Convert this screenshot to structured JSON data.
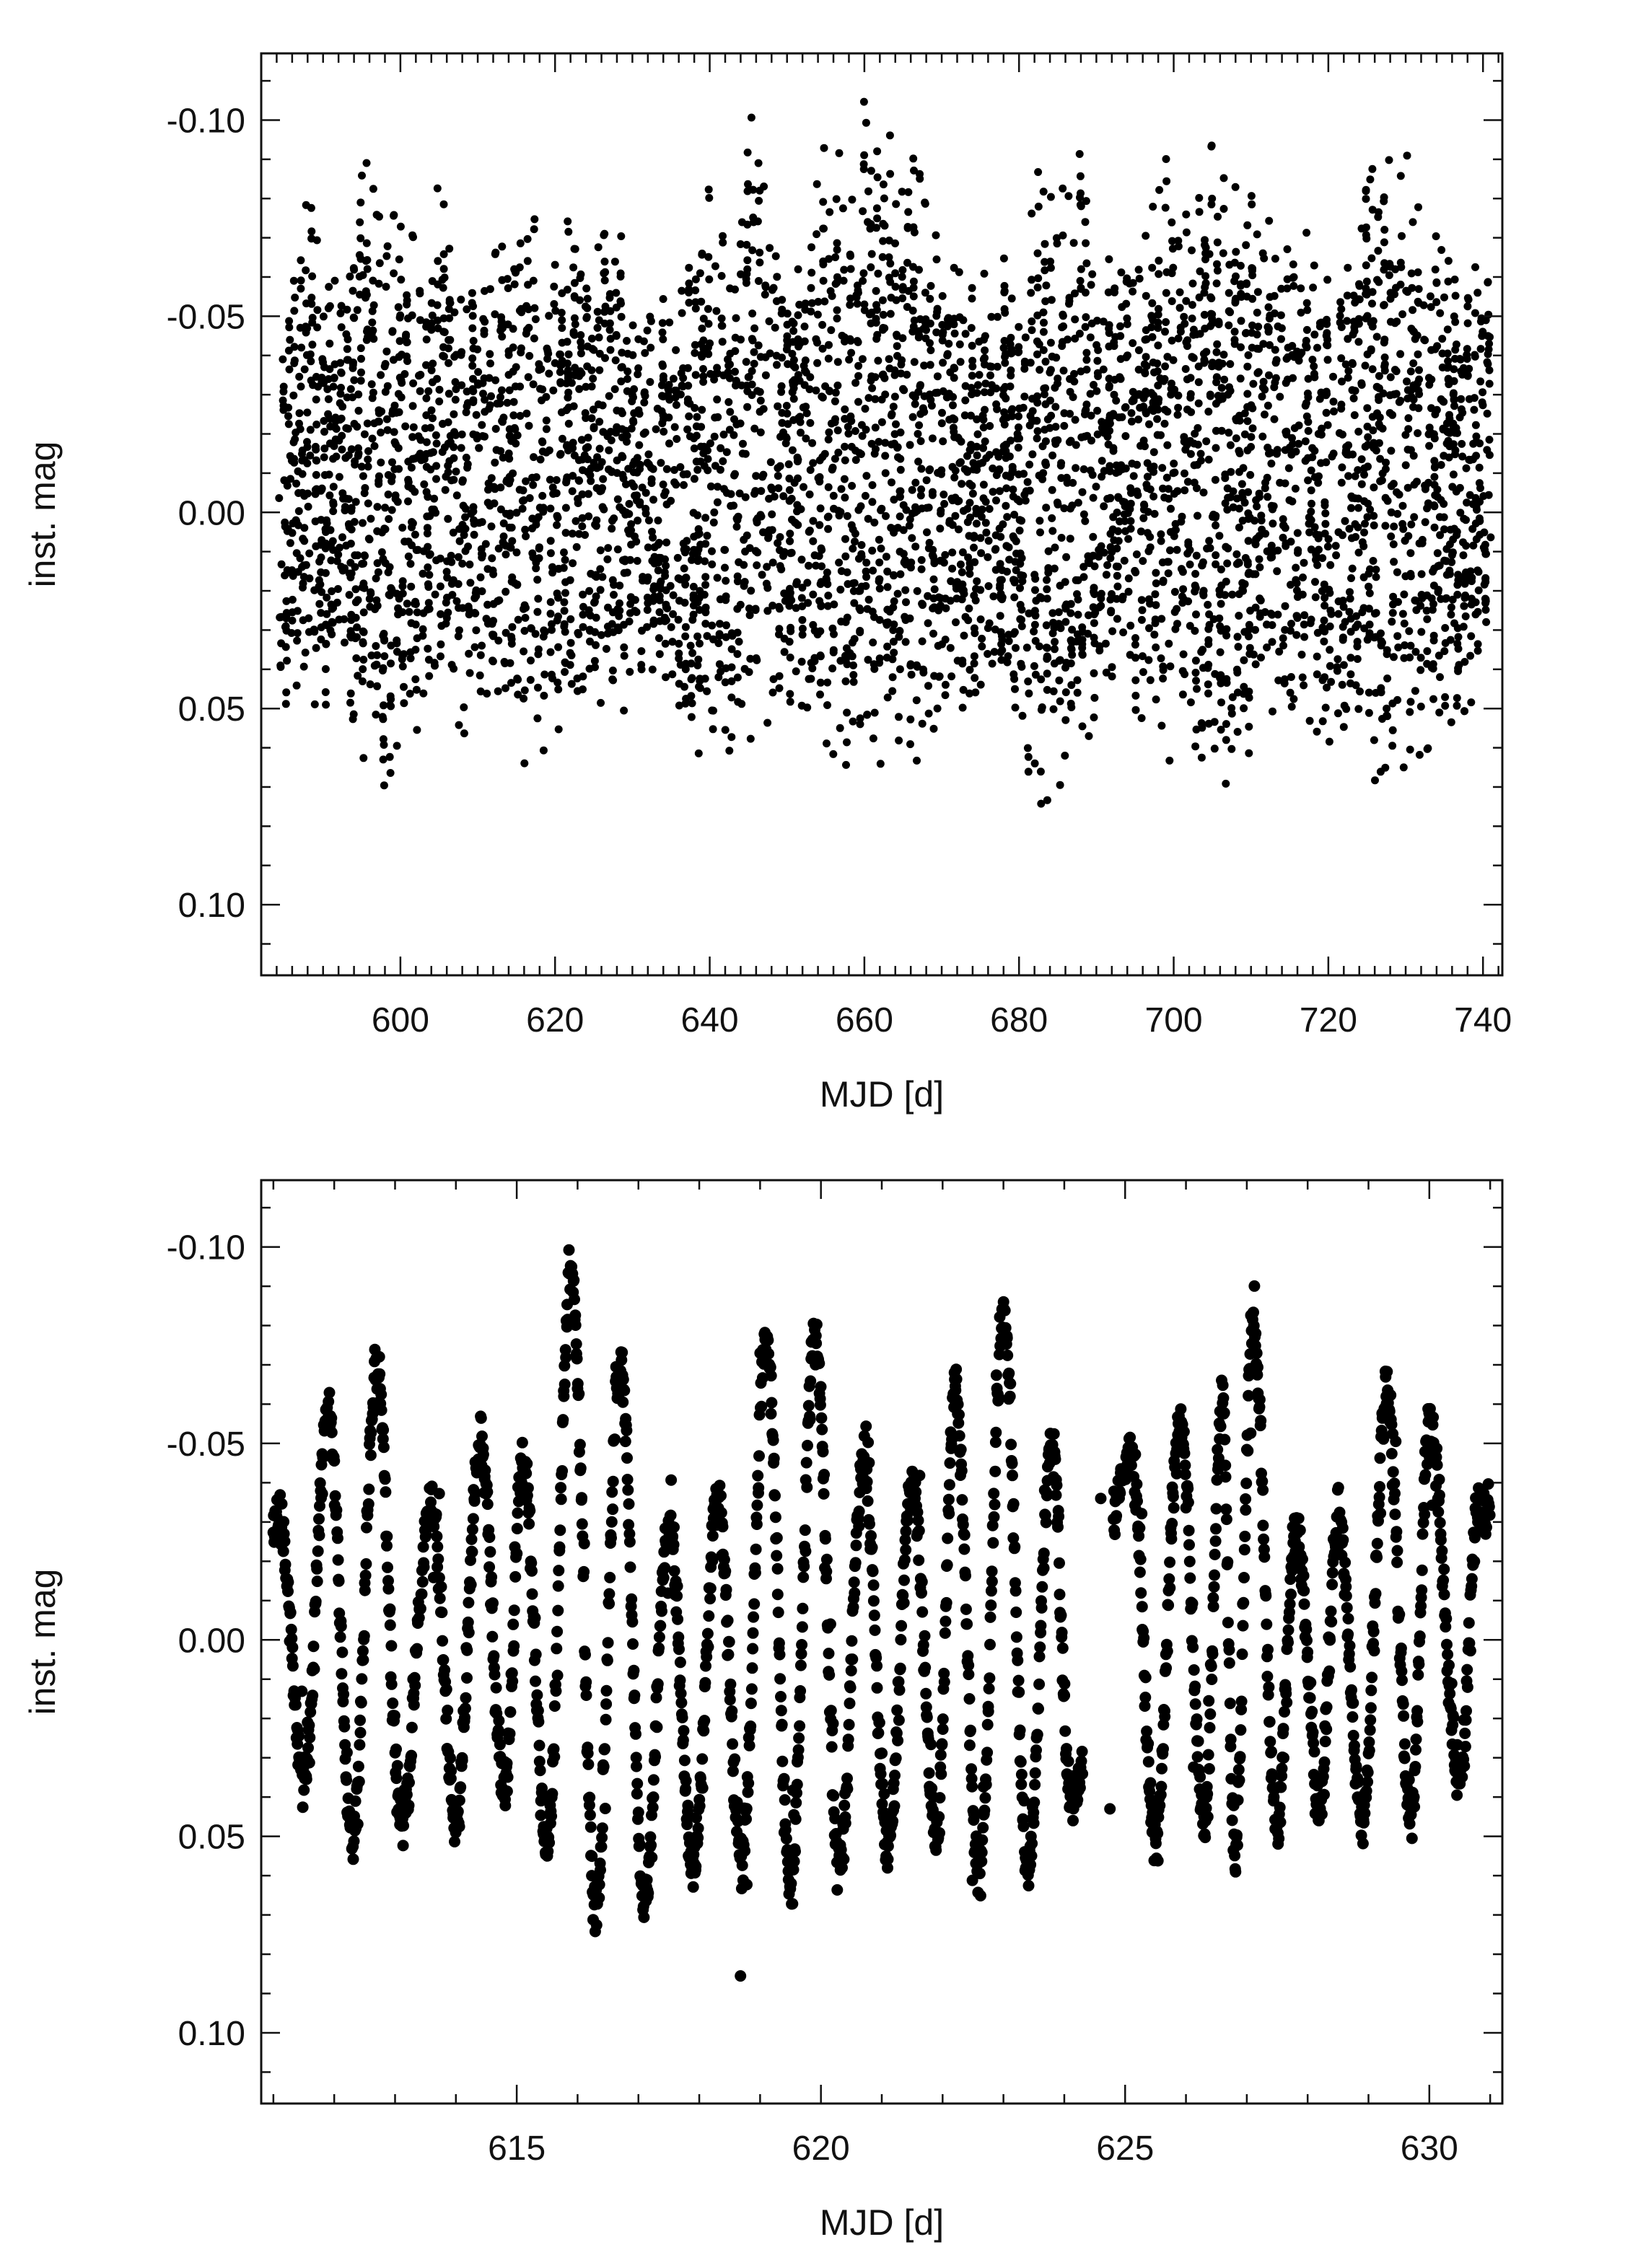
{
  "chart_data": [
    {
      "type": "scatter",
      "panel": "top",
      "xlabel": "MJD [d]",
      "ylabel": "inst. mag",
      "xlim": [
        582,
        742.5
      ],
      "ylim": [
        0.118,
        -0.117
      ],
      "y_inverted": true,
      "x_ticks": [
        600,
        620,
        640,
        660,
        680,
        700,
        720,
        740
      ],
      "x_tick_labels": [
        "600",
        "620",
        "640",
        "660",
        "680",
        "700",
        "720",
        "740"
      ],
      "y_ticks": [
        -0.1,
        -0.05,
        0.0,
        0.05,
        0.1
      ],
      "y_tick_labels": [
        "-0.10",
        "-0.05",
        "0.00",
        "0.05",
        "0.10"
      ],
      "grid": false,
      "marker_color": "#000000",
      "data_range_x": [
        584.3,
        741.0
      ],
      "series": [
        {
          "envelope_min": {
            "x": [
              585,
              588,
              590,
              593,
              595,
              598,
              600,
              603,
              605,
              608,
              610,
              613,
              615,
              618,
              620,
              623,
              625,
              628,
              630,
              633,
              635,
              638,
              640,
              643,
              645,
              648,
              650,
              653,
              655,
              658,
              660,
              663,
              665,
              668,
              670,
              673,
              675,
              678,
              680,
              683,
              685,
              688,
              690,
              693,
              695,
              698,
              700,
              703,
              705,
              708,
              710,
              713,
              715,
              718,
              720,
              723,
              725,
              728,
              730,
              733,
              735,
              738,
              740
            ],
            "y": [
              -0.055,
              -0.08,
              -0.07,
              -0.065,
              -0.095,
              -0.07,
              -0.08,
              -0.062,
              -0.085,
              -0.06,
              -0.058,
              -0.07,
              -0.092,
              -0.078,
              -0.075,
              -0.08,
              -0.065,
              -0.078,
              -0.05,
              -0.065,
              -0.06,
              -0.07,
              -0.088,
              -0.07,
              -0.105,
              -0.085,
              -0.06,
              -0.075,
              -0.095,
              -0.09,
              -0.105,
              -0.095,
              -0.102,
              -0.08,
              -0.065,
              -0.06,
              -0.06,
              -0.065,
              -0.055,
              -0.094,
              -0.08,
              -0.092,
              -0.058,
              -0.07,
              -0.065,
              -0.085,
              -0.095,
              -0.082,
              -0.094,
              -0.088,
              -0.09,
              -0.07,
              -0.08,
              -0.068,
              -0.06,
              -0.08,
              -0.095,
              -0.09,
              -0.092,
              -0.075,
              -0.065,
              -0.06,
              -0.068
            ]
          },
          "envelope_max": {
            "x": [
              585,
              588,
              590,
              593,
              595,
              598,
              600,
              603,
              605,
              608,
              610,
              613,
              615,
              618,
              620,
              623,
              625,
              628,
              630,
              633,
              635,
              638,
              640,
              643,
              645,
              648,
              650,
              653,
              655,
              658,
              660,
              663,
              665,
              668,
              670,
              673,
              675,
              678,
              680,
              683,
              685,
              688,
              690,
              693,
              695,
              698,
              700,
              703,
              705,
              708,
              710,
              713,
              715,
              718,
              720,
              723,
              725,
              728,
              730,
              733,
              735,
              738,
              740
            ],
            "y": [
              0.058,
              0.048,
              0.05,
              0.055,
              0.062,
              0.07,
              0.06,
              0.058,
              0.05,
              0.058,
              0.045,
              0.05,
              0.065,
              0.062,
              0.06,
              0.055,
              0.05,
              0.055,
              0.045,
              0.05,
              0.055,
              0.06,
              0.065,
              0.062,
              0.058,
              0.055,
              0.048,
              0.05,
              0.06,
              0.065,
              0.062,
              0.065,
              0.068,
              0.06,
              0.05,
              0.05,
              0.048,
              0.052,
              0.06,
              0.075,
              0.07,
              0.065,
              0.055,
              0.05,
              0.055,
              0.06,
              0.065,
              0.06,
              0.068,
              0.07,
              0.06,
              0.05,
              0.05,
              0.055,
              0.065,
              0.065,
              0.07,
              0.065,
              0.065,
              0.06,
              0.055,
              0.05,
              0.05
            ]
          }
        }
      ]
    },
    {
      "type": "scatter",
      "panel": "bottom",
      "xlabel": "MJD [d]",
      "ylabel": "inst. mag",
      "xlim": [
        610.8,
        631.2
      ],
      "ylim": [
        0.118,
        -0.117
      ],
      "y_inverted": true,
      "x_ticks": [
        615,
        620,
        625,
        630
      ],
      "x_tick_labels": [
        "615",
        "620",
        "625",
        "630"
      ],
      "y_ticks": [
        -0.1,
        -0.05,
        0.0,
        0.05,
        0.1
      ],
      "y_tick_labels": [
        "-0.10",
        "-0.05",
        "0.00",
        "0.05",
        "0.10"
      ],
      "grid": false,
      "marker_color": "#000000",
      "series": [
        {
          "oscillation_period_d": 0.8,
          "gap_x": [
            624.3,
            624.8
          ],
          "peaks": {
            "x": [
              611.1,
              611.9,
              612.7,
              613.6,
              614.4,
              615.1,
              615.9,
              616.7,
              617.5,
              618.3,
              619.1,
              619.9,
              620.7,
              621.5,
              622.2,
              623.0,
              623.8,
              625.1,
              625.9,
              626.6,
              627.1,
              627.8,
              628.5,
              629.3,
              630.0,
              630.8
            ],
            "y": [
              -0.03,
              -0.058,
              -0.07,
              -0.035,
              -0.05,
              -0.045,
              -0.094,
              -0.07,
              -0.03,
              -0.034,
              -0.076,
              -0.078,
              -0.045,
              -0.04,
              -0.065,
              -0.082,
              -0.05,
              -0.047,
              -0.055,
              -0.06,
              -0.081,
              -0.028,
              -0.03,
              -0.061,
              -0.055,
              -0.033
            ]
          },
          "troughs": {
            "x": [
              611.5,
              612.3,
              613.1,
              614.0,
              614.8,
              615.5,
              616.3,
              617.1,
              617.9,
              618.7,
              619.5,
              620.3,
              621.1,
              621.9,
              622.6,
              623.4,
              624.1,
              625.5,
              626.3,
              626.8,
              627.5,
              628.2,
              628.9,
              629.7,
              630.5
            ],
            "y": [
              0.035,
              0.05,
              0.045,
              0.045,
              0.038,
              0.052,
              0.068,
              0.066,
              0.058,
              0.055,
              0.062,
              0.057,
              0.052,
              0.05,
              0.06,
              0.058,
              0.04,
              0.05,
              0.045,
              0.055,
              0.048,
              0.04,
              0.045,
              0.045,
              0.035
            ]
          }
        }
      ]
    }
  ]
}
